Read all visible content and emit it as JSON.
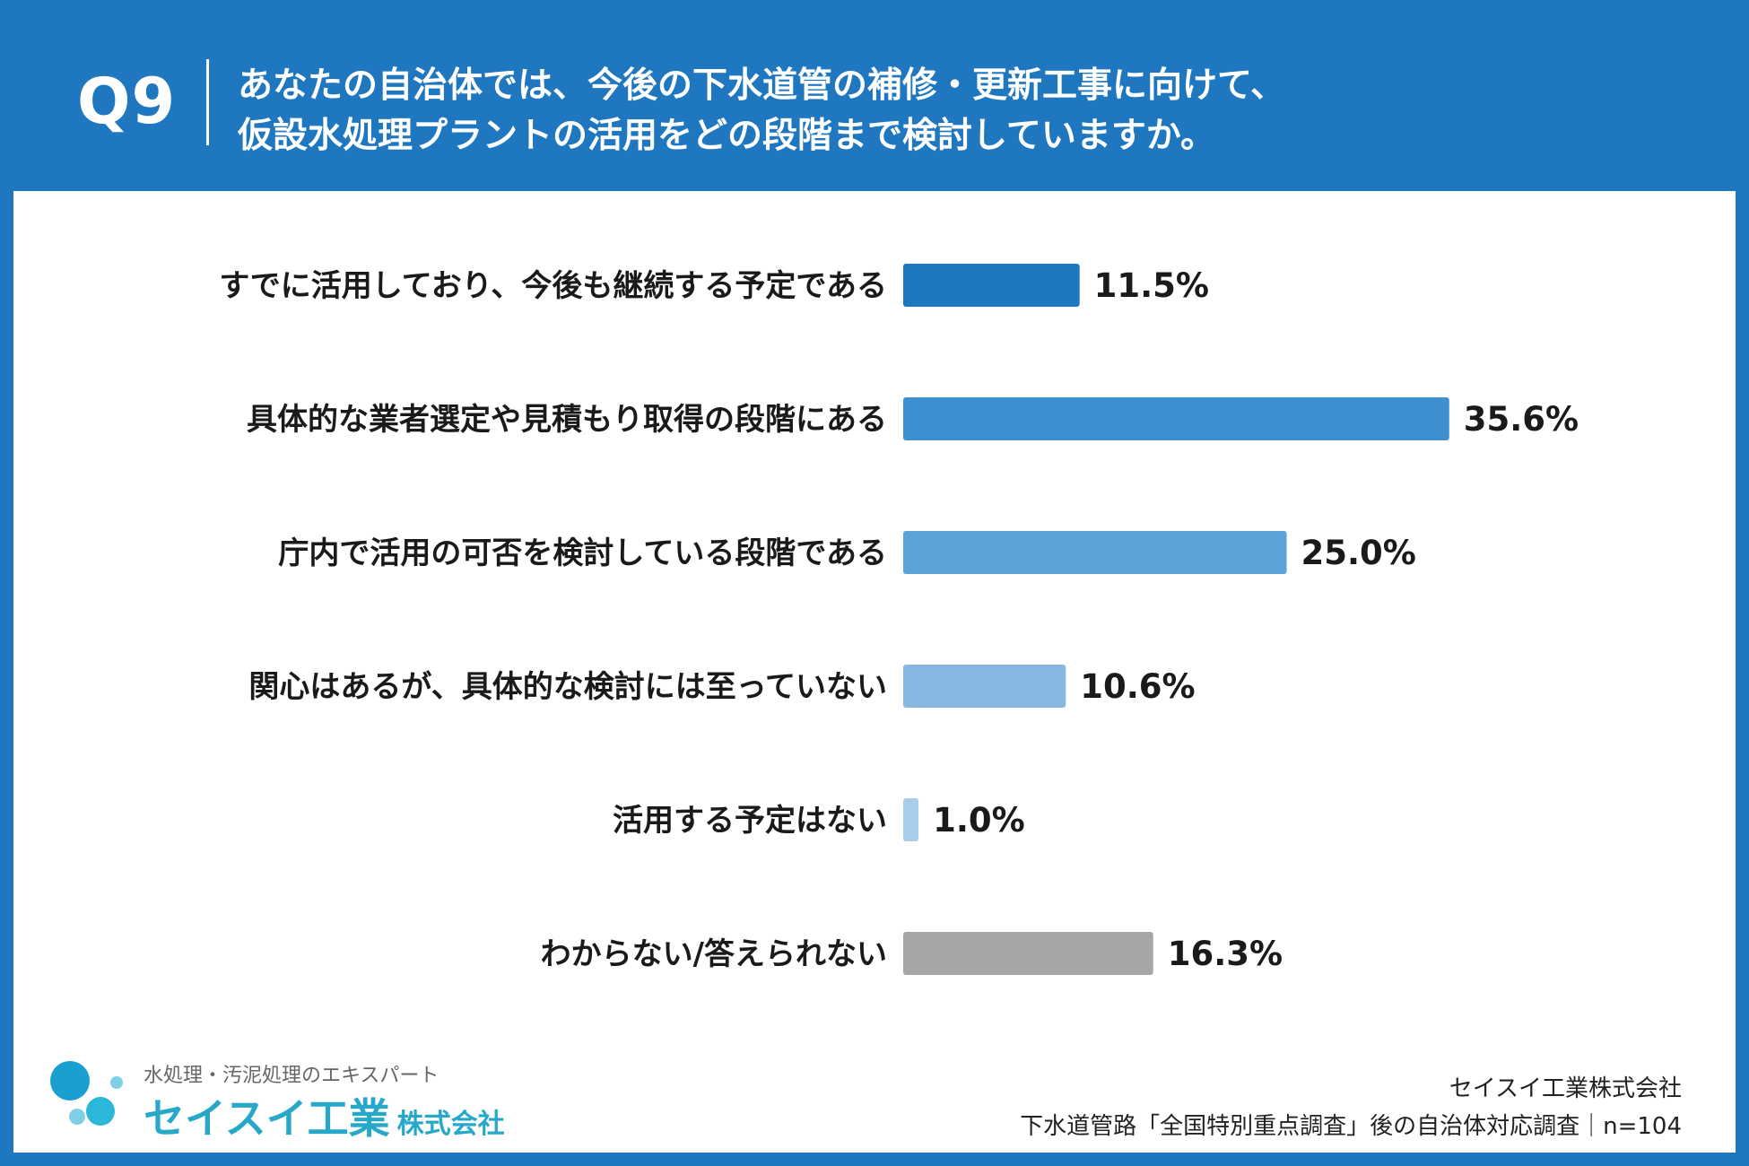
{
  "header": {
    "question_number": "Q9",
    "question_line1": "あなたの自治体では、今後の下水道管の補修・更新工事に向けて、",
    "question_line2": "仮設水処理プラントの活用をどの段階まで検討していますか。"
  },
  "chart_data": {
    "type": "bar",
    "orientation": "horizontal",
    "categories": [
      "すでに活用しており、今後も継続する予定である",
      "具体的な業者選定や見積もり取得の段階にある",
      "庁内で活用の可否を検討している段階である",
      "関心はあるが、具体的な検討には至っていない",
      "活用する予定はない",
      "わからない/答えられない"
    ],
    "values": [
      11.5,
      35.6,
      25.0,
      10.6,
      1.0,
      16.3
    ],
    "value_labels": [
      "11.5%",
      "35.6%",
      "25.0%",
      "10.6%",
      "1.0%",
      "16.3%"
    ],
    "unit": "%",
    "colors": [
      "#1f77c0",
      "#3d8fd0",
      "#5aa2d8",
      "#86b8e2",
      "#a8cdeb",
      "#a6a6a6"
    ],
    "grid": false,
    "legend": "none"
  },
  "footer": {
    "logo_tagline": "水処理・汚泥処理のエキスパート",
    "logo_name": "セイスイ工業",
    "logo_suffix": "株式会社",
    "company": "セイスイ工業株式会社",
    "source": "下水道管路「全国特別重点調査」後の自治体対応調査｜n=104"
  }
}
